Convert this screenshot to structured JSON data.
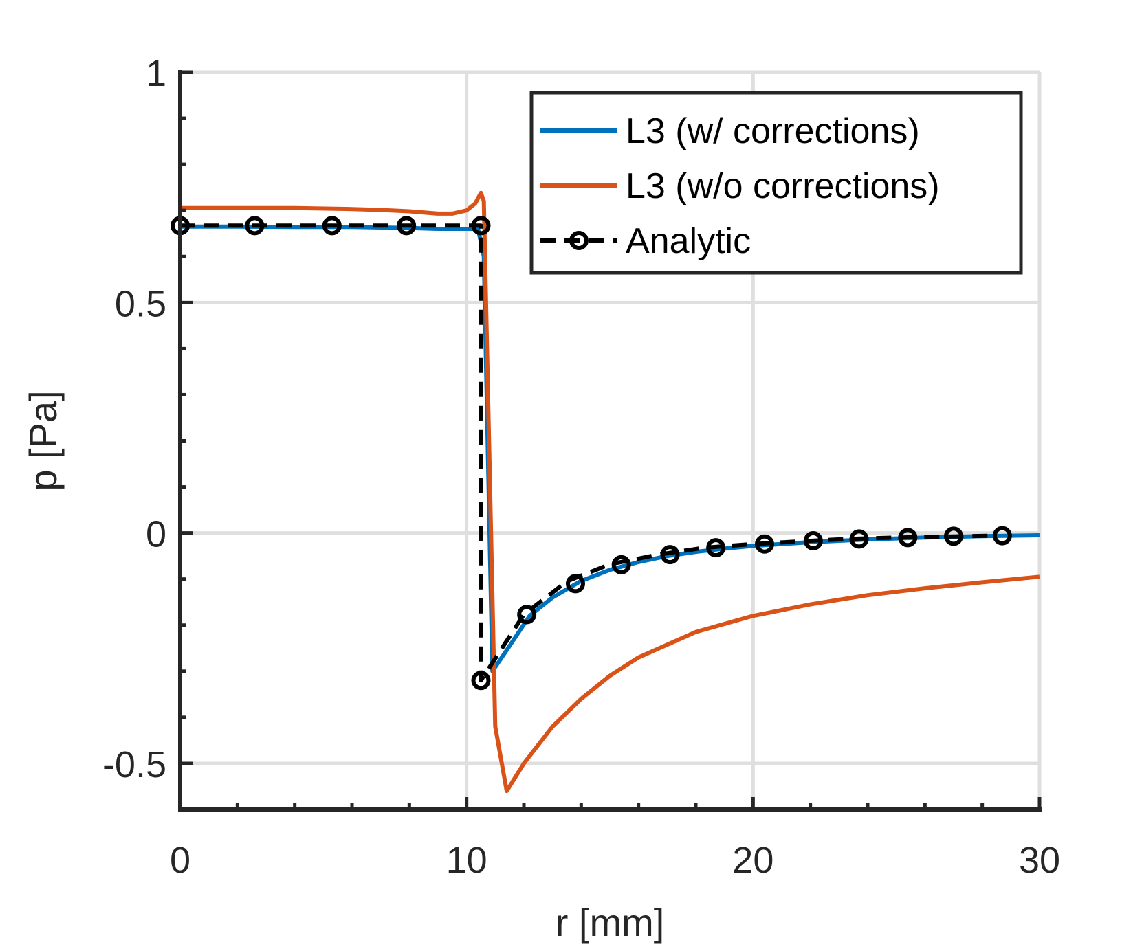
{
  "chart_data": {
    "type": "line",
    "title": "",
    "xlabel": "r [mm]",
    "ylabel": "p [Pa]",
    "xlim": [
      0,
      30
    ],
    "ylim": [
      -0.6,
      1
    ],
    "grid": true,
    "legend_position": "top-right",
    "x_ticks": [
      0,
      10,
      20,
      30
    ],
    "x_tick_labels": [
      "0",
      "10",
      "20",
      "30"
    ],
    "y_ticks": [
      -0.5,
      0,
      0.5,
      1
    ],
    "y_tick_labels": [
      "-0.5",
      "0",
      "0.5",
      "1"
    ],
    "x_minor_ticks": [
      2,
      4,
      6,
      8,
      12,
      14,
      16,
      18,
      22,
      24,
      26,
      28
    ],
    "y_minor_ticks": [
      -0.4,
      -0.3,
      -0.2,
      -0.1,
      0.1,
      0.2,
      0.3,
      0.4,
      0.6,
      0.7,
      0.8,
      0.9
    ],
    "series": [
      {
        "name": "L3 (w/ corrections)",
        "color": "#0072BD",
        "style": "solid",
        "marker": "none",
        "x": [
          0,
          2,
          4,
          6,
          8,
          9,
          10,
          10.4,
          10.5,
          10.6,
          10.9,
          11.5,
          12.2,
          13,
          14,
          15,
          16,
          17,
          18,
          19,
          20,
          22,
          24,
          26,
          28,
          30
        ],
        "y": [
          0.665,
          0.665,
          0.664,
          0.664,
          0.662,
          0.66,
          0.66,
          0.66,
          0.63,
          0.6,
          -0.3,
          -0.245,
          -0.18,
          -0.14,
          -0.104,
          -0.08,
          -0.063,
          -0.05,
          -0.041,
          -0.034,
          -0.028,
          -0.02,
          -0.014,
          -0.01,
          -0.007,
          -0.005
        ]
      },
      {
        "name": "L3 (w/o corrections)",
        "color": "#D95319",
        "style": "solid",
        "marker": "none",
        "x": [
          0,
          2,
          4,
          6,
          7,
          8,
          9,
          9.5,
          10,
          10.3,
          10.5,
          10.6,
          11,
          11.4,
          12,
          13,
          14,
          15,
          16,
          18,
          20,
          22,
          24,
          26,
          28,
          30
        ],
        "y": [
          0.705,
          0.705,
          0.705,
          0.703,
          0.701,
          0.698,
          0.693,
          0.693,
          0.7,
          0.715,
          0.738,
          0.72,
          -0.42,
          -0.56,
          -0.5,
          -0.42,
          -0.36,
          -0.31,
          -0.27,
          -0.215,
          -0.18,
          -0.155,
          -0.135,
          -0.12,
          -0.107,
          -0.095
        ]
      },
      {
        "name": "Analytic",
        "color": "#000000",
        "style": "dashed",
        "marker": "circle",
        "x": [
          0,
          2,
          4,
          6,
          8,
          10,
          10.5,
          10.5,
          12,
          13.5,
          15,
          16.7,
          18.3,
          20,
          21.7,
          23.3,
          25,
          26.7,
          28.3
        ],
        "y": [
          0.667,
          0.667,
          0.667,
          0.667,
          0.667,
          0.667,
          0.667,
          -0.32,
          -0.177,
          -0.105,
          -0.068,
          -0.047,
          -0.032,
          -0.024,
          -0.018,
          -0.013,
          -0.01,
          -0.008,
          -0.006
        ],
        "markers_x": [
          0,
          2.6,
          5.3,
          7.9,
          10.5,
          10.5,
          12.1,
          13.8,
          15.4,
          17.1,
          18.7,
          20.4,
          22.1,
          23.7,
          25.4,
          27,
          28.7
        ],
        "markers_y": [
          0.667,
          0.667,
          0.667,
          0.667,
          0.667,
          -0.32,
          -0.177,
          -0.11,
          -0.069,
          -0.047,
          -0.032,
          -0.024,
          -0.017,
          -0.013,
          -0.01,
          -0.007,
          -0.006
        ]
      }
    ]
  }
}
